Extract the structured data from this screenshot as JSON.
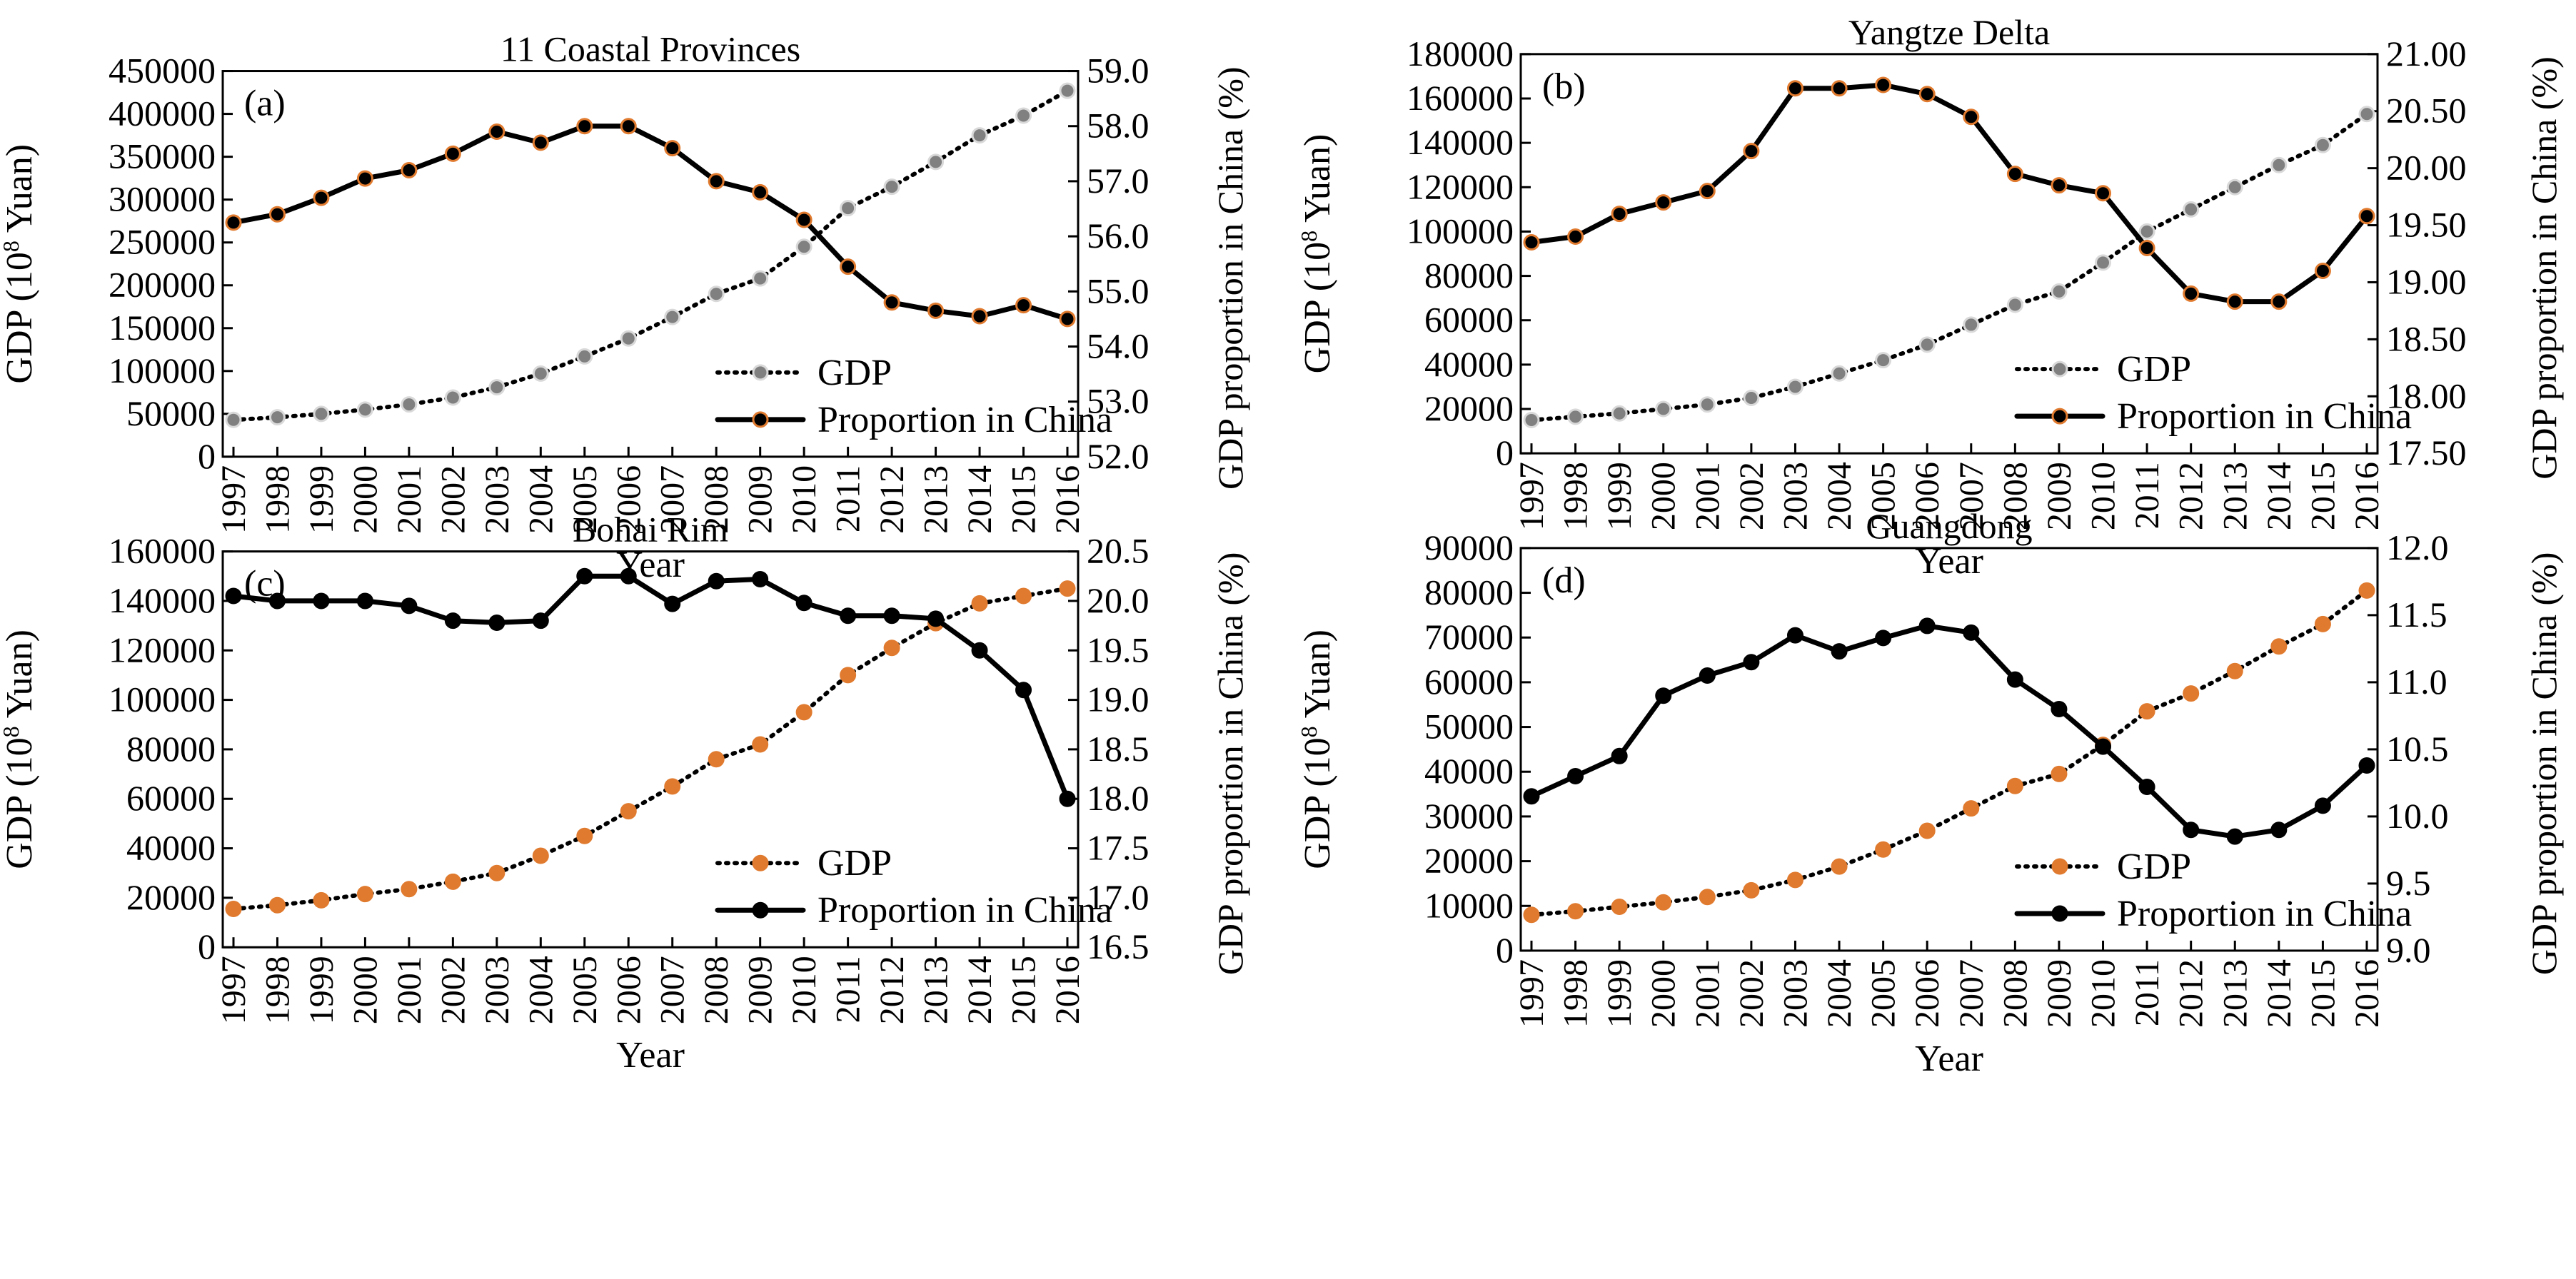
{
  "chart_data": [
    {
      "type": "line",
      "title": "11 Coastal Provinces",
      "panel_label": "(a)",
      "xlabel": "Year",
      "ylabel_left_main": "GDP (10",
      "ylabel_left_sup": "8",
      "ylabel_left_tail": " Yuan)",
      "ylabel_right": "GDP proportion in China (%)",
      "ylim_left": [
        0,
        450000
      ],
      "yticks_left": [
        "0",
        "50000",
        "100000",
        "150000",
        "200000",
        "250000",
        "300000",
        "350000",
        "400000",
        "450000"
      ],
      "ylim_right": [
        52.0,
        59.0
      ],
      "yticks_right": [
        "52.0",
        "53.0",
        "54.0",
        "55.0",
        "56.0",
        "57.0",
        "58.0",
        "59.0"
      ],
      "years": [
        "1997",
        "1998",
        "1999",
        "2000",
        "2001",
        "2002",
        "2003",
        "2004",
        "2005",
        "2006",
        "2007",
        "2008",
        "2009",
        "2010",
        "2011",
        "2012",
        "2013",
        "2014",
        "2015",
        "2016"
      ],
      "series": [
        {
          "name": "GDP",
          "axis": "left",
          "style": "dotted",
          "marker_fill": "#808080",
          "marker_edge": "#d9d9d9",
          "values": [
            43000,
            46000,
            50000,
            55000,
            61000,
            69000,
            81000,
            97000,
            117000,
            138000,
            163000,
            190000,
            208000,
            245000,
            290000,
            315000,
            344000,
            375000,
            398000,
            427000
          ]
        },
        {
          "name": "Proportion in China",
          "axis": "right",
          "style": "solid",
          "marker_fill": "#000000",
          "marker_edge": "#e07a2e",
          "values": [
            56.25,
            56.4,
            56.7,
            57.05,
            57.2,
            57.5,
            57.9,
            57.7,
            58.0,
            58.0,
            57.6,
            57.0,
            56.8,
            56.3,
            55.45,
            54.8,
            54.65,
            54.55,
            54.75,
            54.5
          ]
        }
      ],
      "legend_position": "lower-right"
    },
    {
      "type": "line",
      "title": "Yangtze Delta",
      "panel_label": "(b)",
      "xlabel": "Year",
      "ylabel_left_main": "GDP (10",
      "ylabel_left_sup": "8",
      "ylabel_left_tail": " Yuan)",
      "ylabel_right": "GDP proportion in China (%)",
      "ylim_left": [
        0,
        180000
      ],
      "yticks_left": [
        "0",
        "20000",
        "40000",
        "60000",
        "80000",
        "100000",
        "120000",
        "140000",
        "160000",
        "180000"
      ],
      "ylim_right": [
        17.5,
        21.0
      ],
      "yticks_right": [
        "17.50",
        "18.00",
        "18.50",
        "19.00",
        "19.50",
        "20.00",
        "20.50",
        "21.00"
      ],
      "years": [
        "1997",
        "1998",
        "1999",
        "2000",
        "2001",
        "2002",
        "2003",
        "2004",
        "2005",
        "2006",
        "2007",
        "2008",
        "2009",
        "2010",
        "2011",
        "2012",
        "2013",
        "2014",
        "2015",
        "2016"
      ],
      "series": [
        {
          "name": "GDP",
          "axis": "left",
          "style": "dotted",
          "marker_fill": "#808080",
          "marker_edge": "#d9d9d9",
          "values": [
            15000,
            16500,
            18000,
            20000,
            22000,
            25000,
            30000,
            36000,
            42000,
            49000,
            58000,
            67000,
            73000,
            86000,
            100000,
            110000,
            120000,
            130000,
            139000,
            153000
          ]
        },
        {
          "name": "Proportion in China",
          "axis": "right",
          "style": "solid",
          "marker_fill": "#000000",
          "marker_edge": "#e07a2e",
          "values": [
            19.35,
            19.4,
            19.6,
            19.7,
            19.8,
            20.15,
            20.7,
            20.7,
            20.73,
            20.65,
            20.45,
            19.95,
            19.85,
            19.78,
            19.3,
            18.9,
            18.83,
            18.83,
            19.1,
            19.58
          ]
        }
      ],
      "legend_position": "lower-right"
    },
    {
      "type": "line",
      "title": "Bohai Rim",
      "panel_label": "(c)",
      "xlabel": "Year",
      "ylabel_left_main": "GDP (10",
      "ylabel_left_sup": "8",
      "ylabel_left_tail": " Yuan)",
      "ylabel_right": "GDP proportion in China (%)",
      "ylim_left": [
        0,
        160000
      ],
      "yticks_left": [
        "0",
        "20000",
        "40000",
        "60000",
        "80000",
        "100000",
        "120000",
        "140000",
        "160000"
      ],
      "ylim_right": [
        16.5,
        20.5
      ],
      "yticks_right": [
        "16.5",
        "17.0",
        "17.5",
        "18.0",
        "18.5",
        "19.0",
        "19.5",
        "20.0",
        "20.5"
      ],
      "years": [
        "1997",
        "1998",
        "1999",
        "2000",
        "2001",
        "2002",
        "2003",
        "2004",
        "2005",
        "2006",
        "2007",
        "2008",
        "2009",
        "2010",
        "2011",
        "2012",
        "2013",
        "2014",
        "2015",
        "2016"
      ],
      "series": [
        {
          "name": "GDP",
          "axis": "left",
          "style": "dotted",
          "marker_fill": "#e07a2e",
          "marker_edge": "#e07a2e",
          "values": [
            15500,
            17000,
            19000,
            21500,
            23500,
            26500,
            30000,
            37000,
            45000,
            55000,
            65000,
            76000,
            82000,
            95000,
            110000,
            121000,
            131000,
            139000,
            142000,
            145000
          ]
        },
        {
          "name": "Proportion in China",
          "axis": "right",
          "style": "solid",
          "marker_fill": "#000000",
          "marker_edge": "#000000",
          "values": [
            20.05,
            20.0,
            20.0,
            20.0,
            19.95,
            19.8,
            19.78,
            19.8,
            20.25,
            20.25,
            19.97,
            20.2,
            20.22,
            19.98,
            19.85,
            19.85,
            19.82,
            19.5,
            19.1,
            18.0
          ]
        }
      ],
      "legend_position": "lower-right"
    },
    {
      "type": "line",
      "title": "Guangdong",
      "panel_label": "(d)",
      "xlabel": "Year",
      "ylabel_left_main": "GDP (10",
      "ylabel_left_sup": "8",
      "ylabel_left_tail": " Yuan)",
      "ylabel_right": "GDP proportion in China (%)",
      "ylim_left": [
        0,
        90000
      ],
      "yticks_left": [
        "0",
        "10000",
        "20000",
        "30000",
        "40000",
        "50000",
        "60000",
        "70000",
        "80000",
        "90000"
      ],
      "ylim_right": [
        9.0,
        12.0
      ],
      "yticks_right": [
        "9.0",
        "9.5",
        "10.0",
        "10.5",
        "11.0",
        "11.5",
        "12.0"
      ],
      "years": [
        "1997",
        "1998",
        "1999",
        "2000",
        "2001",
        "2002",
        "2003",
        "2004",
        "2005",
        "2006",
        "2007",
        "2008",
        "2009",
        "2010",
        "2011",
        "2012",
        "2013",
        "2014",
        "2015",
        "2016"
      ],
      "series": [
        {
          "name": "GDP",
          "axis": "left",
          "style": "dotted",
          "marker_fill": "#e07a2e",
          "marker_edge": "#e07a2e",
          "values": [
            8000,
            8800,
            9800,
            10800,
            12000,
            13500,
            15800,
            18800,
            22600,
            26800,
            31800,
            36800,
            39500,
            46000,
            53500,
            57500,
            62500,
            68000,
            73000,
            80500
          ]
        },
        {
          "name": "Proportion in China",
          "axis": "right",
          "style": "solid",
          "marker_fill": "#000000",
          "marker_edge": "#000000",
          "values": [
            10.15,
            10.3,
            10.45,
            10.9,
            11.05,
            11.15,
            11.35,
            11.23,
            11.33,
            11.42,
            11.37,
            11.02,
            10.8,
            10.52,
            10.22,
            9.9,
            9.85,
            9.9,
            10.08,
            10.38
          ]
        }
      ],
      "legend_position": "lower-right"
    }
  ]
}
